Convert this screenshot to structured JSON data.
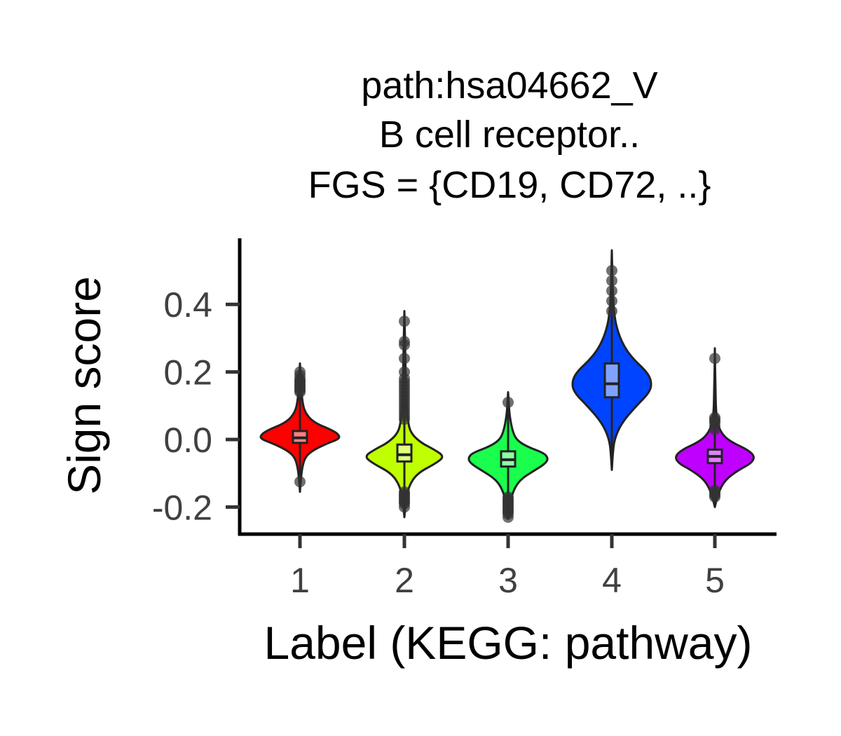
{
  "chart_data": {
    "type": "violin",
    "title_lines": [
      "path:hsa04662_V",
      "B cell receptor..",
      "FGS = {CD19, CD72, ..}"
    ],
    "xlabel": "Label (KEGG: pathway)",
    "ylabel": "Sign score",
    "categories": [
      "1",
      "2",
      "3",
      "4",
      "5"
    ],
    "yticks": [
      "0.4",
      "0.2",
      "0.0",
      "-0.2"
    ],
    "ytick_values": [
      0.4,
      0.2,
      0.0,
      -0.2
    ],
    "ylim": [
      -0.27,
      0.59
    ],
    "grid": false,
    "legend": "none",
    "groups": [
      {
        "label": "1",
        "color": "#ff0000",
        "box_color": "#ff8080",
        "min": -0.155,
        "q1": -0.01,
        "median": 0.005,
        "q3": 0.025,
        "max": 0.225,
        "density": [
          [
            -0.155,
            0.0
          ],
          [
            -0.12,
            0.02
          ],
          [
            -0.08,
            0.06
          ],
          [
            -0.05,
            0.14
          ],
          [
            -0.03,
            0.35
          ],
          [
            -0.01,
            0.72
          ],
          [
            0.0,
            0.95
          ],
          [
            0.01,
            1.0
          ],
          [
            0.025,
            0.86
          ],
          [
            0.05,
            0.35
          ],
          [
            0.08,
            0.12
          ],
          [
            0.12,
            0.05
          ],
          [
            0.17,
            0.025
          ],
          [
            0.225,
            0.0
          ]
        ],
        "outliers": [
          -0.125,
          0.14,
          0.145,
          0.15,
          0.155,
          0.16,
          0.165,
          0.17,
          0.175,
          0.18,
          0.19,
          0.2
        ]
      },
      {
        "label": "2",
        "color": "#bfff00",
        "box_color": "#dfff80",
        "min": -0.23,
        "q1": -0.065,
        "median": -0.045,
        "q3": -0.015,
        "max": 0.38,
        "density": [
          [
            -0.23,
            0.0
          ],
          [
            -0.19,
            0.03
          ],
          [
            -0.14,
            0.1
          ],
          [
            -0.1,
            0.32
          ],
          [
            -0.07,
            0.8
          ],
          [
            -0.05,
            1.0
          ],
          [
            -0.03,
            0.75
          ],
          [
            -0.01,
            0.42
          ],
          [
            0.02,
            0.15
          ],
          [
            0.06,
            0.08
          ],
          [
            0.12,
            0.05
          ],
          [
            0.2,
            0.03
          ],
          [
            0.3,
            0.015
          ],
          [
            0.38,
            0.0
          ]
        ],
        "outliers": [
          -0.2,
          -0.19,
          -0.185,
          -0.18,
          -0.175,
          -0.17,
          -0.165,
          -0.16,
          -0.155,
          0.06,
          0.07,
          0.08,
          0.09,
          0.1,
          0.11,
          0.12,
          0.13,
          0.14,
          0.15,
          0.16,
          0.17,
          0.18,
          0.2,
          0.24,
          0.28,
          0.29,
          0.35
        ]
      },
      {
        "label": "3",
        "color": "#1aff4d",
        "box_color": "#8cffa6",
        "min": -0.235,
        "q1": -0.08,
        "median": -0.06,
        "q3": -0.035,
        "max": 0.14,
        "density": [
          [
            -0.235,
            0.0
          ],
          [
            -0.2,
            0.04
          ],
          [
            -0.16,
            0.1
          ],
          [
            -0.12,
            0.28
          ],
          [
            -0.09,
            0.68
          ],
          [
            -0.07,
            0.95
          ],
          [
            -0.055,
            1.0
          ],
          [
            -0.04,
            0.9
          ],
          [
            -0.02,
            0.45
          ],
          [
            0.0,
            0.2
          ],
          [
            0.03,
            0.1
          ],
          [
            0.07,
            0.04
          ],
          [
            0.1,
            0.02
          ],
          [
            0.14,
            0.0
          ]
        ],
        "outliers": [
          -0.23,
          -0.22,
          -0.215,
          -0.21,
          -0.205,
          -0.2,
          -0.195,
          -0.19,
          -0.185,
          -0.18,
          -0.175,
          -0.17,
          0.11
        ]
      },
      {
        "label": "4",
        "color": "#0044ff",
        "box_color": "#80a2ff",
        "min": -0.09,
        "q1": 0.125,
        "median": 0.165,
        "q3": 0.225,
        "max": 0.56,
        "density": [
          [
            -0.09,
            0.0
          ],
          [
            -0.05,
            0.02
          ],
          [
            0.0,
            0.06
          ],
          [
            0.05,
            0.25
          ],
          [
            0.1,
            0.62
          ],
          [
            0.14,
            0.95
          ],
          [
            0.17,
            1.0
          ],
          [
            0.2,
            0.88
          ],
          [
            0.24,
            0.52
          ],
          [
            0.28,
            0.28
          ],
          [
            0.33,
            0.12
          ],
          [
            0.38,
            0.05
          ],
          [
            0.45,
            0.02
          ],
          [
            0.56,
            0.0
          ]
        ],
        "outliers": [
          0.38,
          0.41,
          0.44,
          0.47,
          0.5
        ]
      },
      {
        "label": "5",
        "color": "#bf00ff",
        "box_color": "#df80ff",
        "min": -0.2,
        "q1": -0.07,
        "median": -0.05,
        "q3": -0.03,
        "max": 0.27,
        "density": [
          [
            -0.2,
            0.0
          ],
          [
            -0.16,
            0.08
          ],
          [
            -0.12,
            0.25
          ],
          [
            -0.09,
            0.6
          ],
          [
            -0.07,
            0.92
          ],
          [
            -0.05,
            1.0
          ],
          [
            -0.03,
            0.82
          ],
          [
            -0.01,
            0.45
          ],
          [
            0.01,
            0.22
          ],
          [
            0.04,
            0.08
          ],
          [
            0.08,
            0.03
          ],
          [
            0.15,
            0.015
          ],
          [
            0.27,
            0.0
          ]
        ],
        "outliers": [
          -0.17,
          -0.165,
          -0.16,
          -0.155,
          -0.15,
          0.03,
          0.04,
          0.05,
          0.055,
          0.06,
          0.065,
          0.24
        ]
      }
    ]
  }
}
